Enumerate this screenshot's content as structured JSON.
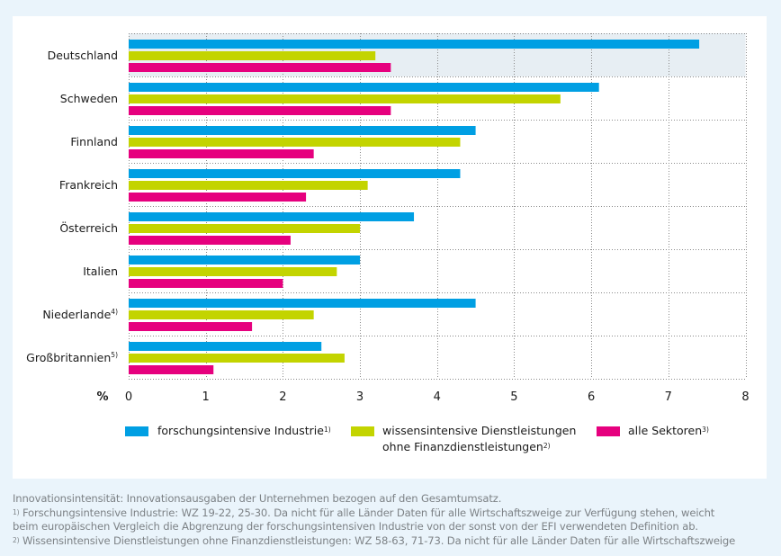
{
  "colors": {
    "background": "#eaf4fb",
    "panel": "#ffffff",
    "highlight": "#e7eef3",
    "forschung": "#009fe3",
    "wissen": "#c3d400",
    "alle": "#e6007e",
    "grid": "#8a8a8a",
    "footnote_text": "#7d8286"
  },
  "chart_data": {
    "type": "bar",
    "orientation": "horizontal",
    "categories": [
      "Deutschland",
      "Schweden",
      "Finnland",
      "Frankreich",
      "Österreich",
      "Italien",
      "Niederlande",
      "Großbritannien"
    ],
    "category_superscripts": [
      "",
      "",
      "",
      "",
      "",
      "",
      "4)",
      "5)"
    ],
    "highlighted_category": "Deutschland",
    "series": [
      {
        "name": "forschungsintensive Industrie",
        "superscript": "1)",
        "color": "#009fe3",
        "values": [
          7.4,
          6.1,
          4.5,
          4.3,
          3.7,
          3.0,
          4.5,
          2.5
        ]
      },
      {
        "name": "wissensintensive Dienstleistungen ohne Finanzdienstleistungen",
        "name_line1": "wissensintensive Dienstleistungen",
        "name_line2": "ohne Finanzdienstleistungen",
        "superscript": "2)",
        "color": "#c3d400",
        "values": [
          3.2,
          5.6,
          4.3,
          3.1,
          3.0,
          2.7,
          2.4,
          2.8
        ]
      },
      {
        "name": "alle Sektoren",
        "superscript": "3)",
        "color": "#e6007e",
        "values": [
          3.4,
          3.4,
          2.4,
          2.3,
          2.1,
          2.0,
          1.6,
          1.1
        ]
      }
    ],
    "xlabel": "%",
    "xlim": [
      0,
      8
    ],
    "xticks": [
      "0",
      "1",
      "2",
      "3",
      "4",
      "5",
      "6",
      "7",
      "8"
    ],
    "grid": true,
    "legend_position": "bottom"
  },
  "footnotes": [
    {
      "sup": "",
      "text": "Innovationsintensität: Innovationsausgaben der Unternehmen bezogen auf den Gesamtumsatz."
    },
    {
      "sup": "1)",
      "text": " Forschungsintensive Industrie: WZ 19-22, 25-30. Da nicht für alle Länder Daten für alle Wirtschaftszweige zur Verfügung stehen, weicht"
    },
    {
      "sup": "",
      "text": "beim europäischen Vergleich die Abgrenzung der forschungsintensiven Industrie von der sonst von der EFI verwendeten Definition ab."
    },
    {
      "sup": "2)",
      "text": " Wissensintensive Dienstleistungen ohne Finanzdienstleistungen: WZ 58-63, 71-73. Da nicht für alle Länder Daten für alle Wirtschaftszweige"
    }
  ]
}
